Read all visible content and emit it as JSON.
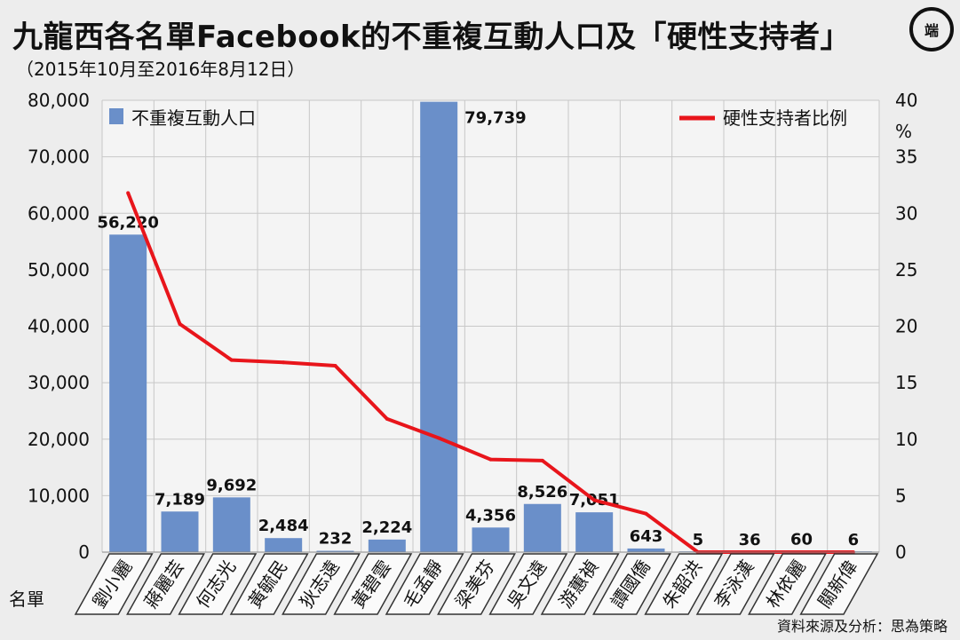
{
  "header": {
    "title": "九龍西各名單Facebook的不重複互動人口及「硬性支持者」",
    "subtitle": "（2015年10月至2016年8月12日）",
    "logo_text": "端"
  },
  "footer": {
    "source": "資料來源及分析：思為策略"
  },
  "colors": {
    "bar": "#6a8fc9",
    "line": "#e8151b",
    "background": "#ededed",
    "grid": "#c8c8c8"
  },
  "chart_data": {
    "type": "bar",
    "xlabel": "名單",
    "ylabel": "",
    "y2label": "%",
    "ylim": [
      0,
      80000
    ],
    "y2lim": [
      0,
      40
    ],
    "yticks": [
      "0",
      "10,000",
      "20,000",
      "30,000",
      "40,000",
      "50,000",
      "60,000",
      "70,000",
      "80,000"
    ],
    "y2ticks": [
      "0",
      "5",
      "10",
      "15",
      "20",
      "25",
      "30",
      "35",
      "40"
    ],
    "grid": true,
    "legend_placement": "top",
    "categories": [
      "劉小麗",
      "蔣麗芸",
      "何志光",
      "黃毓民",
      "狄志遠",
      "黃碧雲",
      "毛孟靜",
      "梁美芬",
      "吳文遠",
      "游蕙禎",
      "譚國僑",
      "朱韶洪",
      "李泳漢",
      "林依麗",
      "關新偉"
    ],
    "series": [
      {
        "name": "不重複互動人口",
        "type": "bar",
        "axis": "left",
        "values": [
          56220,
          7189,
          9692,
          2484,
          232,
          2224,
          79739,
          4356,
          8526,
          7051,
          643,
          5,
          36,
          60,
          6
        ],
        "labels": [
          "56,220",
          "7,189",
          "9,692",
          "2,484",
          "232",
          "2,224",
          "79,739",
          "4,356",
          "8,526",
          "7,051",
          "643",
          "5",
          "36",
          "60",
          "6"
        ]
      },
      {
        "name": "硬性支持者比例",
        "type": "line",
        "axis": "right",
        "values": [
          31.8,
          20.2,
          17.0,
          16.8,
          16.5,
          11.8,
          10.1,
          8.2,
          8.1,
          4.6,
          3.4,
          0,
          0,
          0,
          0
        ]
      }
    ]
  }
}
